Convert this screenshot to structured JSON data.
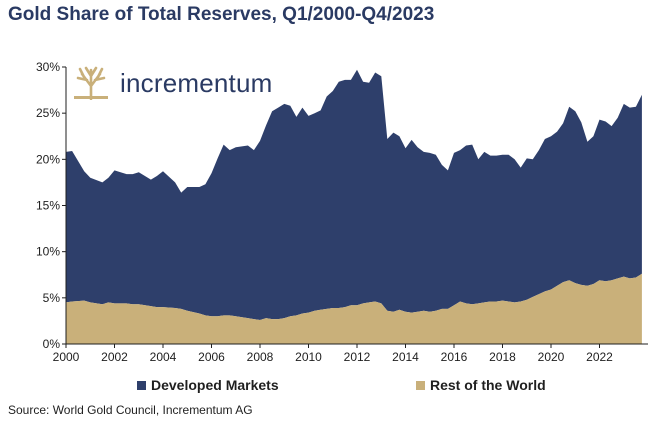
{
  "title": "Gold Share of Total Reserves, Q1/2000-Q4/2023",
  "source": "Source: World Gold Council, Incrementum AG",
  "logo": {
    "text": "incrementum",
    "icon": "tree-icon"
  },
  "colors": {
    "developed": "#2e3f6b",
    "rest": "#c9b07a",
    "title": "#2a3a63"
  },
  "chart_data": {
    "type": "area",
    "stacked": true,
    "title": "Gold Share of Total Reserves, Q1/2000-Q4/2023",
    "x": [
      2000.0,
      2000.25,
      2000.75,
      2001.0,
      2001.5,
      2001.75,
      2002.0,
      2002.5,
      2002.75,
      2003.0,
      2003.5,
      2003.75,
      2004.0,
      2004.5,
      2004.75,
      2005.0,
      2005.5,
      2005.75,
      2006.0,
      2006.25,
      2006.5,
      2006.75,
      2007.0,
      2007.5,
      2007.75,
      2008.0,
      2008.25,
      2008.5,
      2008.75,
      2009.0,
      2009.25,
      2009.5,
      2009.75,
      2010.0,
      2010.25,
      2010.5,
      2010.75,
      2011.0,
      2011.25,
      2011.5,
      2011.75,
      2012.0,
      2012.25,
      2012.5,
      2012.75,
      2013.0,
      2013.25,
      2013.5,
      2013.75,
      2014.0,
      2014.25,
      2014.5,
      2014.75,
      2015.0,
      2015.25,
      2015.5,
      2015.75,
      2016.0,
      2016.25,
      2016.5,
      2016.75,
      2017.0,
      2017.25,
      2017.5,
      2017.75,
      2018.0,
      2018.25,
      2018.5,
      2018.75,
      2019.0,
      2019.25,
      2019.5,
      2019.75,
      2020.0,
      2020.25,
      2020.5,
      2020.75,
      2021.0,
      2021.25,
      2021.5,
      2021.75,
      2022.0,
      2022.25,
      2022.5,
      2022.75,
      2023.0,
      2023.25,
      2023.5,
      2023.75
    ],
    "series": [
      {
        "name": "Rest of the World",
        "color": "#c9b07a",
        "values": [
          4.5,
          4.6,
          4.7,
          4.5,
          4.3,
          4.5,
          4.4,
          4.4,
          4.3,
          4.3,
          4.1,
          4.0,
          4.0,
          3.9,
          3.8,
          3.6,
          3.3,
          3.1,
          3.0,
          3.0,
          3.1,
          3.1,
          3.0,
          2.8,
          2.7,
          2.6,
          2.8,
          2.7,
          2.7,
          2.8,
          3.0,
          3.1,
          3.3,
          3.4,
          3.6,
          3.7,
          3.8,
          3.9,
          3.9,
          4.0,
          4.2,
          4.2,
          4.4,
          4.5,
          4.6,
          4.4,
          3.6,
          3.5,
          3.7,
          3.5,
          3.4,
          3.5,
          3.6,
          3.5,
          3.6,
          3.8,
          3.8,
          4.2,
          4.6,
          4.4,
          4.3,
          4.4,
          4.5,
          4.6,
          4.6,
          4.7,
          4.6,
          4.5,
          4.6,
          4.8,
          5.1,
          5.4,
          5.7,
          5.9,
          6.3,
          6.7,
          6.9,
          6.6,
          6.4,
          6.3,
          6.5,
          6.9,
          6.8,
          6.9,
          7.1,
          7.3,
          7.1,
          7.2,
          7.6
        ]
      },
      {
        "name": "Developed Markets",
        "color": "#2e3f6b",
        "values": [
          16.3,
          16.3,
          14.0,
          13.5,
          13.2,
          13.5,
          14.4,
          14.0,
          14.1,
          14.3,
          13.7,
          14.2,
          14.7,
          13.6,
          12.6,
          13.4,
          13.7,
          14.2,
          15.5,
          17.1,
          18.5,
          17.9,
          18.3,
          18.7,
          18.3,
          19.4,
          20.9,
          22.5,
          22.9,
          23.2,
          22.8,
          21.5,
          22.3,
          21.3,
          21.4,
          21.6,
          23.0,
          23.5,
          24.5,
          24.6,
          24.4,
          25.5,
          24.0,
          23.8,
          24.8,
          24.6,
          18.6,
          19.4,
          18.8,
          17.7,
          18.7,
          17.8,
          17.2,
          17.2,
          16.9,
          15.6,
          15.0,
          16.5,
          16.4,
          17.1,
          17.3,
          15.6,
          16.3,
          15.8,
          15.8,
          15.8,
          15.9,
          15.5,
          14.5,
          15.3,
          14.9,
          15.6,
          16.5,
          16.6,
          16.7,
          17.2,
          18.8,
          18.6,
          17.6,
          15.6,
          16.0,
          17.4,
          17.3,
          16.7,
          17.4,
          18.7,
          18.5,
          18.5,
          19.4
        ]
      }
    ],
    "legend": [
      "Developed Markets",
      "Rest of the World"
    ],
    "legend_position": "bottom",
    "xlim": [
      2000,
      2024
    ],
    "ylim": [
      0,
      30
    ],
    "xticks": [
      2000,
      2002,
      2004,
      2006,
      2008,
      2010,
      2012,
      2014,
      2016,
      2018,
      2020,
      2022
    ],
    "xtick_labels": [
      "2000",
      "2002",
      "2004",
      "2006",
      "2008",
      "2010",
      "2012",
      "2014",
      "2016",
      "2018",
      "2020",
      "2022"
    ],
    "yticks": [
      0,
      5,
      10,
      15,
      20,
      25,
      30
    ],
    "ytick_labels": [
      "0%",
      "5%",
      "10%",
      "15%",
      "20%",
      "25%",
      "30%"
    ],
    "xlabel": "",
    "ylabel": "",
    "grid": false
  }
}
